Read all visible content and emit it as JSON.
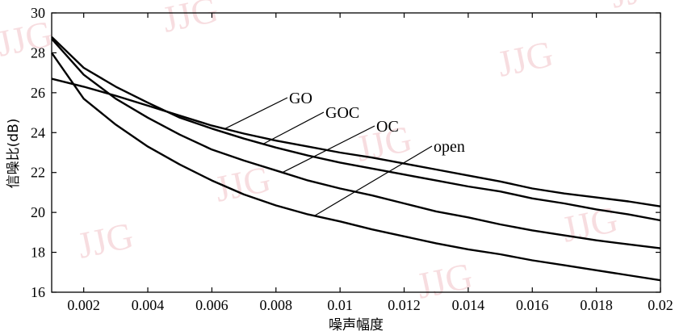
{
  "chart_data": {
    "type": "line",
    "xlabel": "噪声幅度",
    "ylabel": "信噪比(dB)",
    "xlim": [
      0.001,
      0.02
    ],
    "ylim": [
      16,
      30
    ],
    "x_ticks": [
      0.002,
      0.004,
      0.006,
      0.008,
      0.01,
      0.012,
      0.014,
      0.016,
      0.018,
      0.02
    ],
    "x_tick_labels": [
      "0.002",
      "0.004",
      "0.006",
      "0.008",
      "0.01",
      "0.012",
      "0.014",
      "0.016",
      "0.018",
      "0.02"
    ],
    "y_ticks": [
      16,
      18,
      20,
      22,
      24,
      26,
      28,
      30
    ],
    "y_tick_labels": [
      "16",
      "18",
      "20",
      "22",
      "24",
      "26",
      "28",
      "30"
    ],
    "grid": false,
    "legend": "none",
    "series": [
      {
        "name": "GO",
        "x": [
          0.001,
          0.002,
          0.003,
          0.004,
          0.005,
          0.006,
          0.007,
          0.008,
          0.009,
          0.01,
          0.011,
          0.012,
          0.013,
          0.014,
          0.015,
          0.016,
          0.017,
          0.018,
          0.019,
          0.02
        ],
        "y": [
          26.7,
          26.3,
          25.85,
          25.35,
          24.85,
          24.35,
          23.95,
          23.6,
          23.3,
          23.0,
          22.75,
          22.45,
          22.15,
          21.85,
          21.55,
          21.2,
          20.95,
          20.75,
          20.55,
          20.3
        ]
      },
      {
        "name": "GOC",
        "x": [
          0.001,
          0.002,
          0.003,
          0.004,
          0.005,
          0.006,
          0.007,
          0.008,
          0.009,
          0.01,
          0.011,
          0.012,
          0.013,
          0.014,
          0.015,
          0.016,
          0.017,
          0.018,
          0.019,
          0.02
        ],
        "y": [
          28.8,
          27.25,
          26.3,
          25.5,
          24.75,
          24.2,
          23.7,
          23.25,
          22.85,
          22.5,
          22.2,
          21.9,
          21.6,
          21.3,
          21.05,
          20.7,
          20.45,
          20.15,
          19.9,
          19.6
        ]
      },
      {
        "name": "OC",
        "x": [
          0.001,
          0.002,
          0.003,
          0.004,
          0.005,
          0.006,
          0.007,
          0.008,
          0.009,
          0.01,
          0.011,
          0.012,
          0.013,
          0.014,
          0.015,
          0.016,
          0.017,
          0.018,
          0.019,
          0.02
        ],
        "y": [
          28.7,
          26.9,
          25.7,
          24.75,
          23.9,
          23.15,
          22.6,
          22.1,
          21.6,
          21.2,
          20.85,
          20.45,
          20.05,
          19.75,
          19.4,
          19.1,
          18.85,
          18.6,
          18.4,
          18.2
        ]
      },
      {
        "name": "open",
        "x": [
          0.001,
          0.002,
          0.003,
          0.004,
          0.005,
          0.006,
          0.007,
          0.008,
          0.009,
          0.01,
          0.011,
          0.012,
          0.013,
          0.014,
          0.015,
          0.016,
          0.017,
          0.018,
          0.019,
          0.02
        ],
        "y": [
          28.0,
          25.7,
          24.4,
          23.3,
          22.4,
          21.6,
          20.9,
          20.35,
          19.9,
          19.55,
          19.15,
          18.8,
          18.45,
          18.15,
          17.9,
          17.6,
          17.35,
          17.1,
          16.85,
          16.6
        ]
      }
    ],
    "annotations": [
      {
        "text": "GO",
        "target_series": "GO",
        "x": 0.0064
      },
      {
        "text": "GOC",
        "target_series": "GOC",
        "x": 0.0076
      },
      {
        "text": "OC",
        "target_series": "OC",
        "x": 0.0082
      },
      {
        "text": "open",
        "target_series": "open",
        "x": 0.0092
      }
    ],
    "watermark": "JJG"
  }
}
